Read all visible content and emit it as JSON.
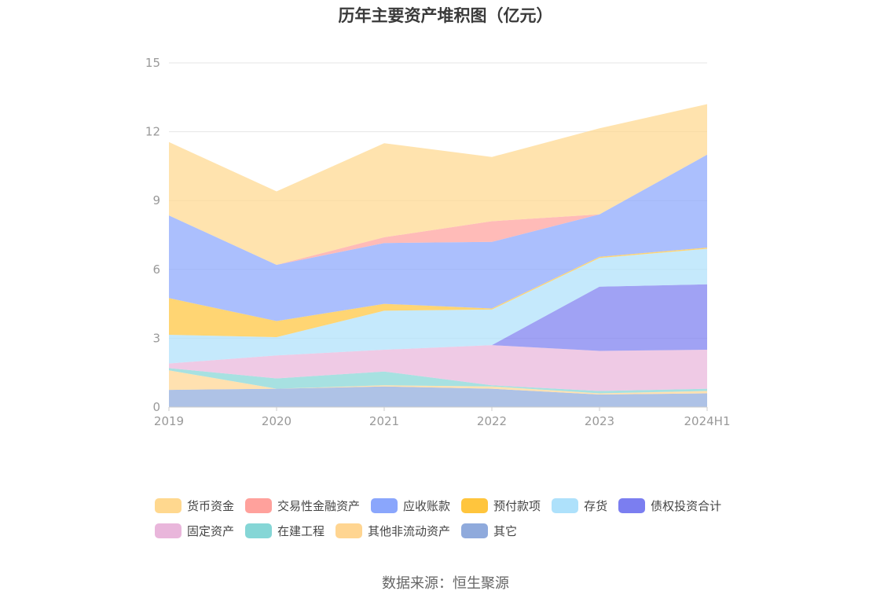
{
  "title": "历年主要资产堆积图（亿元）",
  "source": "数据来源：恒生聚源",
  "colors": {
    "axis": "#cccccc",
    "grid": "#e6e6e6"
  },
  "chart_data": {
    "type": "area",
    "stacked": true,
    "categories": [
      "2019",
      "2020",
      "2021",
      "2022",
      "2023",
      "2024H1"
    ],
    "ylim": [
      0,
      15
    ],
    "yticks": [
      0,
      3,
      6,
      9,
      12,
      15
    ],
    "grid": true,
    "legend_position": "bottom",
    "series": [
      {
        "name": "其它",
        "color": "#8faadc",
        "values": [
          0.75,
          0.8,
          0.9,
          0.8,
          0.55,
          0.6
        ]
      },
      {
        "name": "其他非流动资产",
        "color": "#ffd591",
        "values": [
          0.85,
          0.0,
          0.05,
          0.1,
          0.05,
          0.1
        ]
      },
      {
        "name": "在建工程",
        "color": "#85d6d6",
        "values": [
          0.1,
          0.45,
          0.6,
          0.05,
          0.1,
          0.1
        ]
      },
      {
        "name": "固定资产",
        "color": "#e9b6db",
        "values": [
          0.2,
          1.0,
          0.95,
          1.75,
          1.75,
          1.7
        ]
      },
      {
        "name": "债权投资合计",
        "color": "#7b7ef0",
        "values": [
          0.0,
          0.0,
          0.0,
          0.0,
          2.8,
          2.85
        ]
      },
      {
        "name": "存货",
        "color": "#aee1fb",
        "values": [
          1.25,
          0.8,
          1.7,
          1.55,
          1.25,
          1.55
        ]
      },
      {
        "name": "预付款项",
        "color": "#ffc53d",
        "values": [
          1.6,
          0.7,
          0.3,
          0.05,
          0.05,
          0.05
        ]
      },
      {
        "name": "应收账款",
        "color": "#8aa6fc",
        "values": [
          3.6,
          2.45,
          2.65,
          2.9,
          1.85,
          4.05
        ]
      },
      {
        "name": "交易性金融资产",
        "color": "#ffa19c",
        "values": [
          0.0,
          0.0,
          0.25,
          0.9,
          0.0,
          0.0
        ]
      },
      {
        "name": "货币资金",
        "color": "#ffd88f",
        "values": [
          3.2,
          3.2,
          4.1,
          2.8,
          3.75,
          2.2
        ]
      }
    ]
  },
  "legend": {
    "row1": [
      {
        "label": "货币资金",
        "color": "#ffd88f"
      },
      {
        "label": "交易性金融资产",
        "color": "#ffa19c"
      },
      {
        "label": "应收账款",
        "color": "#8aa6fc"
      },
      {
        "label": "预付款项",
        "color": "#ffc53d"
      },
      {
        "label": "存货",
        "color": "#aee1fb"
      },
      {
        "label": "债权投资合计",
        "color": "#7b7ef0"
      }
    ],
    "row2": [
      {
        "label": "固定资产",
        "color": "#e9b6db"
      },
      {
        "label": "在建工程",
        "color": "#85d6d6"
      },
      {
        "label": "其他非流动资产",
        "color": "#ffd591"
      },
      {
        "label": "其它",
        "color": "#8faadc"
      }
    ]
  }
}
